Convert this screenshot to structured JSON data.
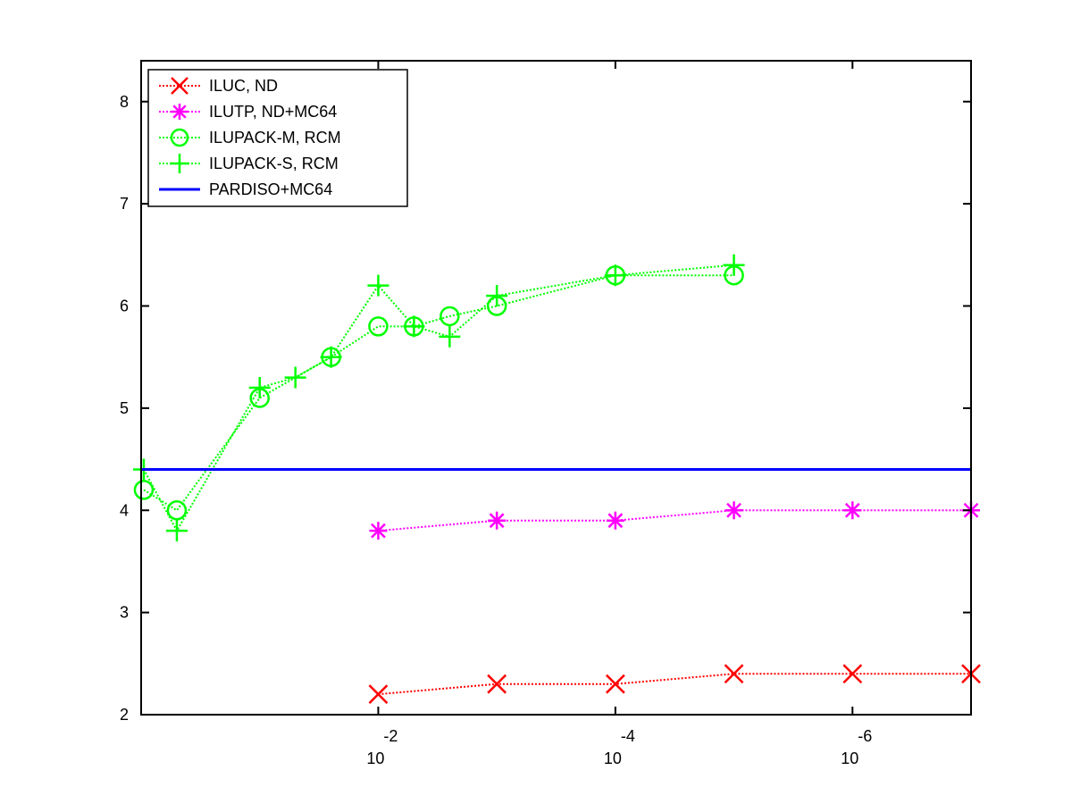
{
  "chart_data": {
    "type": "line",
    "title": "",
    "xlabel": "",
    "ylabel": "",
    "x_scale": "log-reversed",
    "xlim": [
      1,
      1e-07
    ],
    "ylim": [
      2,
      8.4
    ],
    "x_ticks": [
      {
        "value": 0.01,
        "base": "10",
        "exp": "-2"
      },
      {
        "value": 0.0001,
        "base": "10",
        "exp": "-4"
      },
      {
        "value": 1e-06,
        "base": "10",
        "exp": "-6"
      }
    ],
    "y_ticks": [
      {
        "value": 2,
        "label": "2"
      },
      {
        "value": 3,
        "label": "3"
      },
      {
        "value": 4,
        "label": "4"
      },
      {
        "value": 5,
        "label": "5"
      },
      {
        "value": 6,
        "label": "6"
      },
      {
        "value": 7,
        "label": "7"
      },
      {
        "value": 8,
        "label": "8"
      }
    ],
    "grid": false,
    "legend_position": "top-left",
    "series": [
      {
        "name": "ILUC,  ND",
        "color": "#ff0000",
        "marker": "x",
        "line": "dotted",
        "x": [
          0.01,
          0.001,
          0.0001,
          1e-05,
          1e-06,
          1e-07
        ],
        "y": [
          2.2,
          2.3,
          2.3,
          2.4,
          2.4,
          2.4
        ]
      },
      {
        "name": "ILUTP,  ND+MC64",
        "color": "#ff00ff",
        "marker": "asterisk",
        "line": "dotted",
        "x": [
          0.01,
          0.001,
          0.0001,
          1e-05,
          1e-06,
          1e-07
        ],
        "y": [
          3.8,
          3.9,
          3.9,
          4.0,
          4.0,
          4.0
        ]
      },
      {
        "name": "ILUPACK-M, RCM",
        "color": "#00ff00",
        "marker": "circle",
        "line": "dotted",
        "x": [
          0.95,
          0.5,
          0.1,
          0.025,
          0.01,
          0.005,
          0.0025,
          0.001,
          0.0001,
          1e-05
        ],
        "y": [
          4.2,
          4.0,
          5.1,
          5.5,
          5.8,
          5.8,
          5.9,
          6.0,
          6.3,
          6.3
        ]
      },
      {
        "name": "ILUPACK-S, RCM",
        "color": "#00ff00",
        "marker": "plus",
        "line": "dotted",
        "x": [
          0.95,
          0.5,
          0.1,
          0.05,
          0.025,
          0.01,
          0.005,
          0.0025,
          0.001,
          0.0001,
          1e-05
        ],
        "y": [
          4.4,
          3.8,
          5.2,
          5.3,
          5.5,
          6.2,
          5.8,
          5.7,
          6.1,
          6.3,
          6.4
        ]
      },
      {
        "name": "PARDISO+MC64",
        "color": "#0000ff",
        "marker": "none",
        "line": "solid",
        "x": [
          1,
          1e-07
        ],
        "y": [
          4.4,
          4.4
        ]
      }
    ]
  }
}
